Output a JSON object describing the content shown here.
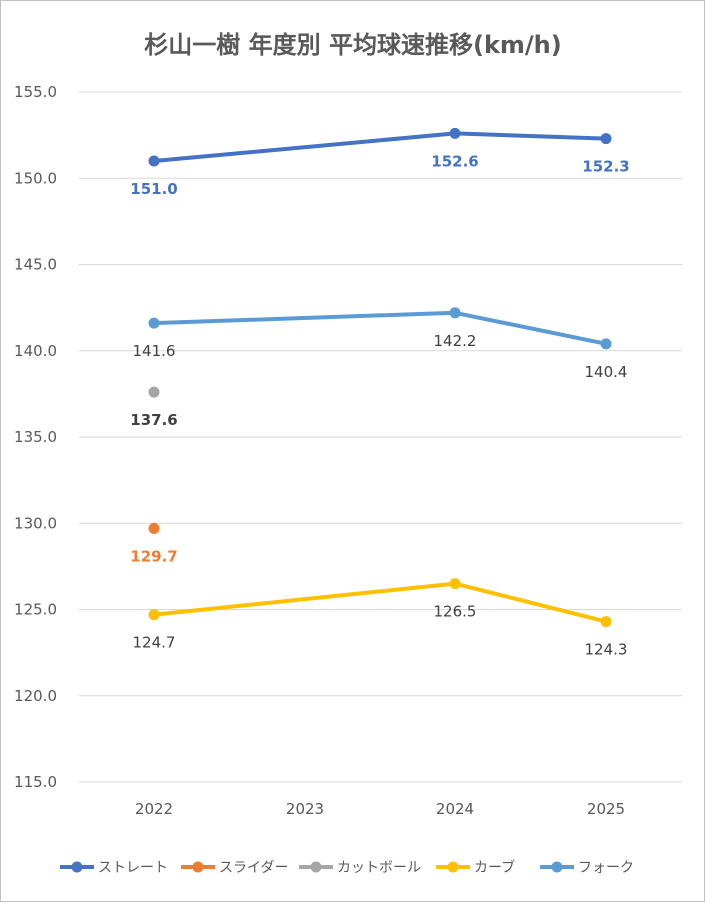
{
  "chart_data": {
    "type": "line",
    "title": "杉山一樹 年度別 平均球速推移(km/h)",
    "xlabel": "",
    "ylabel": "",
    "categories": [
      "2022",
      "2023",
      "2024",
      "2025"
    ],
    "ylim": [
      115.0,
      155.0
    ],
    "y_ticks": [
      "115.0",
      "120.0",
      "125.0",
      "130.0",
      "135.0",
      "140.0",
      "145.0",
      "150.0",
      "155.0"
    ],
    "grid": true,
    "legend_position": "bottom",
    "series": [
      {
        "name": "ストレート",
        "color": "#4472c4",
        "label_color": "#4472c4",
        "label_bold": true,
        "values": [
          151.0,
          null,
          152.6,
          152.3
        ],
        "labels": [
          "151.0",
          null,
          "152.6",
          "152.3"
        ]
      },
      {
        "name": "スライダー",
        "color": "#ed7d31",
        "label_color": "#ed7d31",
        "label_bold": true,
        "values": [
          129.7,
          null,
          null,
          null
        ],
        "labels": [
          "129.7",
          null,
          null,
          null
        ]
      },
      {
        "name": "カットボール",
        "color": "#a5a5a5",
        "label_color": "#404040",
        "label_bold": true,
        "values": [
          137.6,
          null,
          null,
          null
        ],
        "labels": [
          "137.6",
          null,
          null,
          null
        ]
      },
      {
        "name": "カーブ",
        "color": "#ffc000",
        "label_color": "#404040",
        "label_bold": false,
        "values": [
          124.7,
          null,
          126.5,
          124.3
        ],
        "labels": [
          "124.7",
          null,
          "126.5",
          "124.3"
        ]
      },
      {
        "name": "フォーク",
        "color": "#5b9bd5",
        "label_color": "#404040",
        "label_bold": false,
        "values": [
          141.6,
          null,
          142.2,
          140.4
        ],
        "labels": [
          "141.6",
          null,
          "142.2",
          "140.4"
        ]
      }
    ]
  }
}
